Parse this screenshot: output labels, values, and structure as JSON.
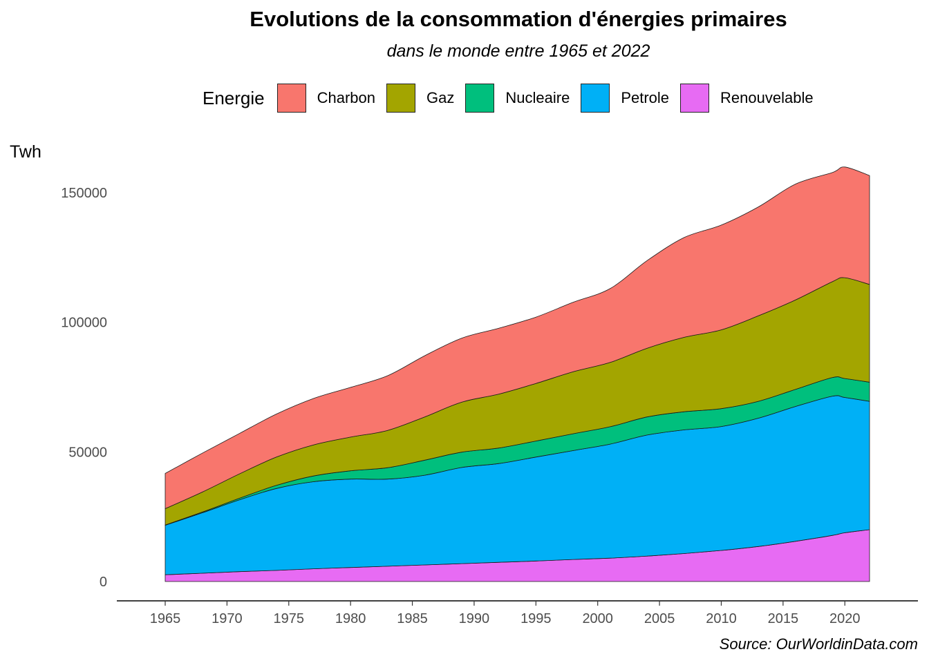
{
  "title": "Evolutions de la consommation d'énergies primaires",
  "subtitle": "dans le monde entre 1965 et 2022",
  "source": "Source: OurWorldinData.com",
  "legend": {
    "title": "Energie",
    "items": [
      {
        "label": "Charbon",
        "color": "#F8766D"
      },
      {
        "label": "Gaz",
        "color": "#A3A500"
      },
      {
        "label": "Nucleaire",
        "color": "#00BF7D"
      },
      {
        "label": "Petrole",
        "color": "#00B0F6"
      },
      {
        "label": "Renouvelable",
        "color": "#E76BF3"
      }
    ]
  },
  "chart_data": {
    "type": "area",
    "stacked": true,
    "ylabel": "Twh",
    "xlabel": "",
    "xlim": [
      1965,
      2022
    ],
    "ylim": [
      0,
      160000
    ],
    "x_ticks": [
      1965,
      1970,
      1975,
      1980,
      1985,
      1990,
      1995,
      2000,
      2005,
      2010,
      2015,
      2020
    ],
    "y_ticks": [
      0,
      50000,
      100000,
      150000
    ],
    "y_tick_labels": [
      "0",
      "50000",
      "100000",
      "150000"
    ],
    "grid": false,
    "legend_position": "top",
    "x": [
      1965,
      1968,
      1971,
      1974,
      1977,
      1980,
      1983,
      1986,
      1989,
      1992,
      1995,
      1998,
      2001,
      2004,
      2007,
      2010,
      2013,
      2016,
      2019,
      2020,
      2022
    ],
    "series": [
      {
        "name": "Renouvelable",
        "values": [
          2600,
          3200,
          3800,
          4300,
          4900,
          5400,
          5900,
          6400,
          6900,
          7400,
          7900,
          8500,
          9000,
          9800,
          10800,
          12000,
          13500,
          15500,
          17800,
          18800,
          20000
        ]
      },
      {
        "name": "Petrole",
        "values": [
          19100,
          23300,
          27700,
          31600,
          33600,
          34100,
          33600,
          34600,
          37100,
          38100,
          40100,
          42000,
          44000,
          46700,
          47700,
          47800,
          49500,
          52000,
          53700,
          52200,
          49500
        ]
      },
      {
        "name": "Nucleaire",
        "values": [
          100,
          300,
          600,
          1200,
          2200,
          3200,
          4400,
          5800,
          5900,
          6000,
          6200,
          6500,
          6700,
          7000,
          7000,
          6900,
          6500,
          6600,
          7200,
          7300,
          7400
        ]
      },
      {
        "name": "Gaz",
        "values": [
          6300,
          7700,
          9400,
          10900,
          12000,
          13000,
          14400,
          16700,
          19300,
          20800,
          22200,
          23900,
          24800,
          26500,
          28700,
          30400,
          33000,
          34500,
          37000,
          38900,
          37700
        ]
      },
      {
        "name": "Charbon",
        "values": [
          13600,
          15000,
          15600,
          16600,
          17900,
          19200,
          21100,
          23600,
          24700,
          25400,
          25600,
          26800,
          28500,
          33800,
          38500,
          40400,
          42000,
          44700,
          42100,
          42700,
          42000
        ]
      }
    ]
  }
}
